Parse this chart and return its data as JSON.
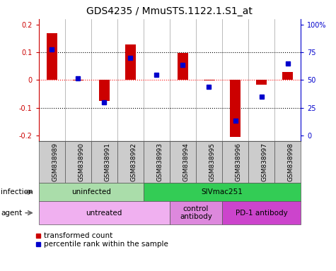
{
  "title": "GDS4235 / MmuSTS.1122.1.S1_at",
  "samples": [
    "GSM838989",
    "GSM838990",
    "GSM838991",
    "GSM838992",
    "GSM838993",
    "GSM838994",
    "GSM838995",
    "GSM838996",
    "GSM838997",
    "GSM838998"
  ],
  "red_values": [
    0.168,
    -0.003,
    -0.075,
    0.127,
    0.0,
    0.097,
    -0.003,
    -0.205,
    -0.018,
    0.028
  ],
  "blue_values_raw": [
    0.111,
    0.007,
    -0.082,
    0.08,
    0.018,
    0.055,
    -0.025,
    -0.148,
    -0.06,
    0.06
  ],
  "ylim": [
    -0.22,
    0.22
  ],
  "yticks": [
    -0.2,
    -0.1,
    0.0,
    0.1,
    0.2
  ],
  "ytick_labels_left": [
    "-0.2",
    "-0.1",
    "0",
    "0.1",
    "0.2"
  ],
  "ytick_labels_right": [
    "0",
    "25",
    "50",
    "75",
    "100%"
  ],
  "infection_groups": [
    {
      "label": "uninfected",
      "start": 0,
      "end": 4,
      "color": "#aaddaa"
    },
    {
      "label": "SIVmac251",
      "start": 4,
      "end": 10,
      "color": "#33cc55"
    }
  ],
  "agent_groups": [
    {
      "label": "untreated",
      "start": 0,
      "end": 5,
      "color": "#f0b0f0"
    },
    {
      "label": "control\nantibody",
      "start": 5,
      "end": 7,
      "color": "#dd88dd"
    },
    {
      "label": "PD-1 antibody",
      "start": 7,
      "end": 10,
      "color": "#cc44cc"
    }
  ],
  "bar_width": 0.4,
  "blue_marker_size": 5,
  "red_color": "#cc0000",
  "blue_color": "#0000cc",
  "sample_box_color": "#cccccc",
  "tick_label_color_left": "#cc0000",
  "tick_label_color_right": "#0000cc",
  "legend_items": [
    "transformed count",
    "percentile rank within the sample"
  ],
  "infection_label": "infection",
  "agent_label": "agent",
  "title_fontsize": 10,
  "axis_fontsize": 7,
  "label_fontsize": 7.5,
  "sample_fontsize": 6.5
}
